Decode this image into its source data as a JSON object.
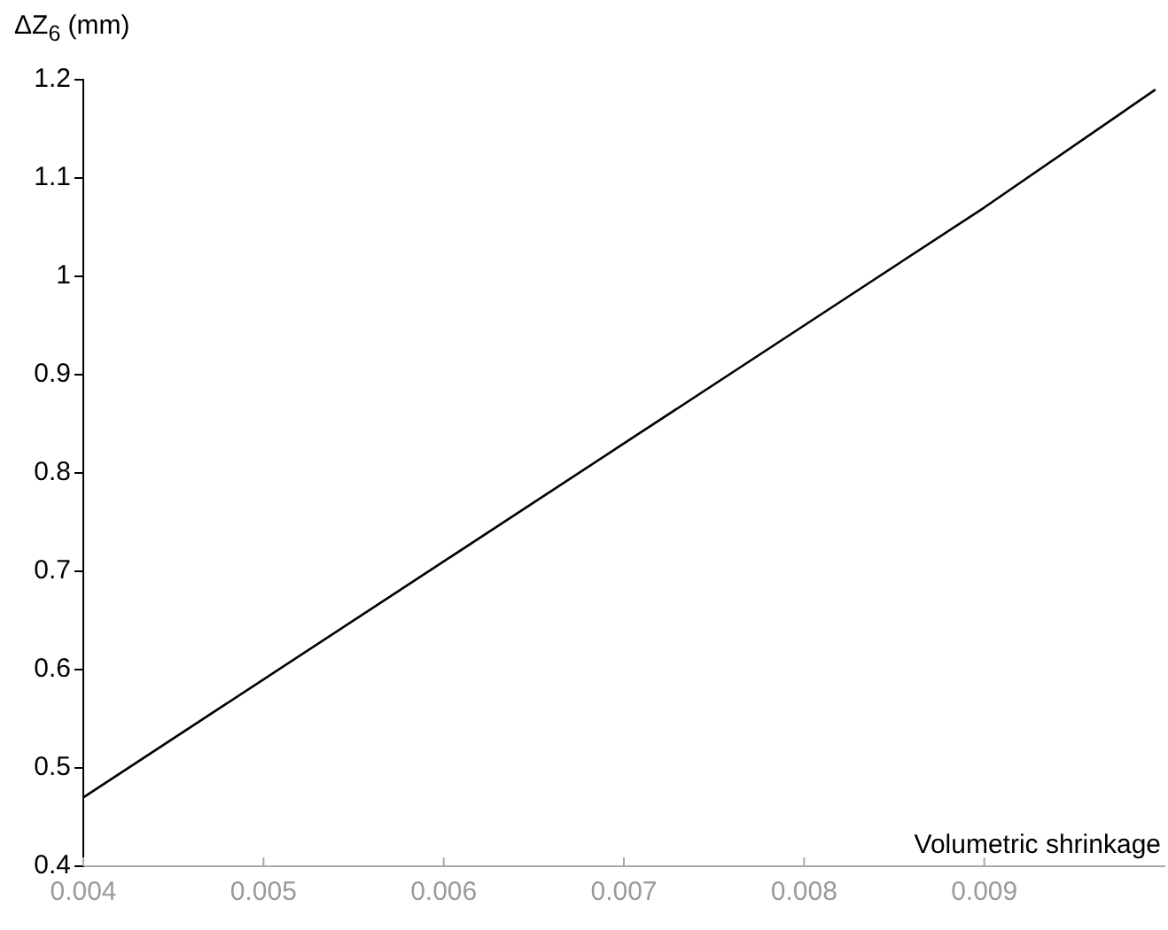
{
  "chart_data": {
    "type": "line",
    "ylabel": "ΔZ$_{6}$ (mm)",
    "xlabel": "Volumetric shrinkage",
    "x": [
      0.004,
      0.005,
      0.006,
      0.007,
      0.008,
      0.009,
      0.00995
    ],
    "values": [
      0.47,
      0.59,
      0.71,
      0.83,
      0.95,
      1.07,
      1.19
    ],
    "color": "#000000",
    "marker": "none",
    "line_style": "solid",
    "xlim": [
      0.004,
      0.01
    ],
    "xticks": [
      0.004,
      0.005,
      0.006,
      0.007,
      0.008,
      0.009
    ],
    "ylim": [
      0.4,
      1.2
    ],
    "yticks": [
      0.4,
      0.5,
      0.6,
      0.7,
      0.8,
      0.9,
      1,
      1.1,
      1.2
    ]
  }
}
